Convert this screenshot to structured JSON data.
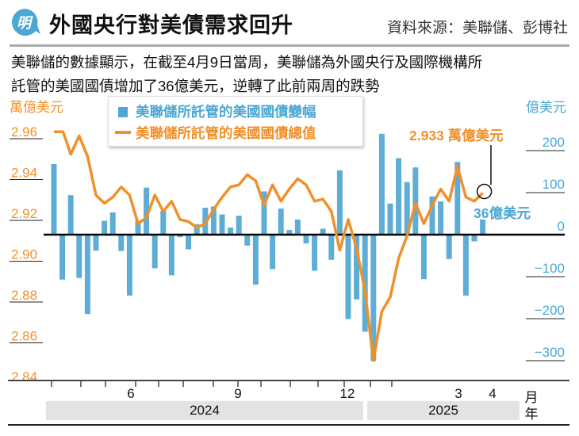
{
  "header": {
    "title": "外國央行對美債需求回升",
    "source": "資料來源：美聯儲、彭博社",
    "logo_text": "明"
  },
  "subtitle": {
    "line1": "美聯儲的數據顯示，在截至4月9日當周，美聯儲為外國央行及國際機構所",
    "line2": "託管的美國國債增加了36億美元，逆轉了此前兩周的跌勢"
  },
  "chart_data": {
    "type": "bar+line",
    "title": "外國央行對美債需求回升",
    "left_axis": {
      "label": "萬億美元",
      "ticks": [
        "2.96",
        "2.94",
        "2.92",
        "2.90",
        "2.88",
        "2.86",
        "2.84"
      ],
      "range": [
        2.84,
        2.96
      ],
      "color": "#f0902a"
    },
    "right_axis": {
      "label": "億美元",
      "ticks": [
        "200",
        "100",
        "0",
        "−100",
        "−200",
        "−300"
      ],
      "range": [
        -300,
        200
      ],
      "color": "#4ba8d3"
    },
    "x_axis": {
      "months": [
        "6",
        "9",
        "12",
        "3",
        "4"
      ],
      "month_unit": "月",
      "years": [
        "2024",
        "2025"
      ],
      "year_unit": "年"
    },
    "legend": [
      "美聯儲所託管的美國國債變幅",
      "美聯儲所託管的美國國債總值"
    ],
    "series": [
      {
        "name": "美聯儲所託管的美國國債變幅",
        "type": "bar",
        "axis": "right",
        "color": "#5eadd6",
        "values": [
          168,
          -107,
          94,
          -103,
          -189,
          -38,
          33,
          53,
          -39,
          -145,
          33,
          112,
          -80,
          57,
          -97,
          -6,
          -35,
          25,
          64,
          67,
          48,
          17,
          45,
          -26,
          -119,
          103,
          -82,
          62,
          11,
          36,
          -21,
          -86,
          14,
          -60,
          153,
          -201,
          -154,
          -231,
          -301,
          240,
          74,
          182,
          125,
          160,
          -106,
          91,
          79,
          -58,
          173,
          -145,
          -16,
          36
        ]
      },
      {
        "name": "美聯儲所託管的美國國債總值",
        "type": "line",
        "axis": "left",
        "color": "#f0902a",
        "values": [
          2.963,
          2.963,
          2.952,
          2.961,
          2.951,
          2.932,
          2.928,
          2.931,
          2.936,
          2.932,
          2.918,
          2.921,
          2.932,
          2.924,
          2.929,
          2.92,
          2.919,
          2.916,
          2.918,
          2.925,
          2.931,
          2.936,
          2.937,
          2.942,
          2.939,
          2.927,
          2.937,
          2.929,
          2.935,
          2.94,
          2.937,
          2.929,
          2.93,
          2.924,
          2.905,
          2.92,
          2.906,
          2.885,
          2.851,
          2.875,
          2.882,
          2.901,
          2.912,
          2.928,
          2.918,
          2.927,
          2.935,
          2.929,
          2.946,
          2.931,
          2.929,
          2.933
        ]
      }
    ],
    "annotations": {
      "line_last": "2.933 萬億美元",
      "bar_last": "36億美元"
    }
  }
}
